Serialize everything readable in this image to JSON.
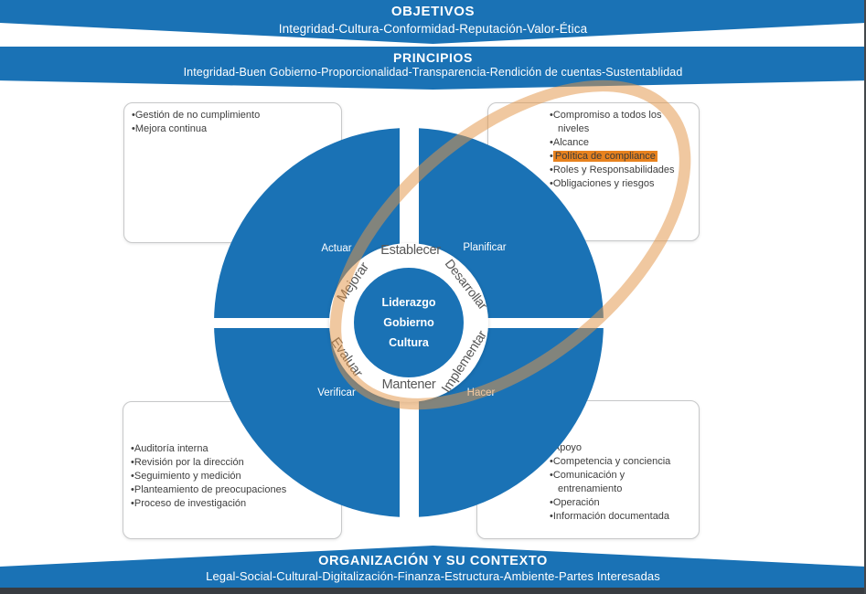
{
  "banners": {
    "objetivos": {
      "title": "OBJETIVOS",
      "subtitle": "Integridad-Cultura-Conformidad-Reputación-Valor-Ética"
    },
    "principios": {
      "title": "PRINCIPIOS",
      "subtitle": "Integridad-Buen Gobierno-Proporcionalidad-Transparencia-Rendición de cuentas-Sustentablidad"
    },
    "contexto": {
      "title": "ORGANIZACIÓN Y SU CONTEXTO",
      "subtitle": "Legal-Social-Cultural-Digitalización-Finanza-Estructura-Ambiente-Partes Interesadas"
    }
  },
  "boxes": {
    "top_left": {
      "items": [
        "Gestión de no cumplimiento",
        "Mejora continua"
      ]
    },
    "top_right": {
      "items": [
        "Compromiso a todos los niveles",
        "Alcance",
        "Política de compliance",
        "Roles y Responsabilidades",
        "Obligaciones y riesgos"
      ],
      "highlighted_item": "Política de compliance"
    },
    "bottom_left": {
      "items": [
        "Auditoría interna",
        "Revisión por la dirección",
        "Seguimiento y medición",
        "Planteamiento de preocupaciones",
        "Proceso de investigación"
      ]
    },
    "bottom_right": {
      "items": [
        "Apoyo",
        "Competencia y conciencia",
        "Comunicación y entrenamiento",
        "Operación",
        "Información documentada"
      ]
    }
  },
  "cycle": {
    "center": [
      "Liderazgo",
      "Gobierno",
      "Cultura"
    ],
    "ring": [
      "Establecer",
      "Desarrollar",
      "Implementar",
      "Mantener",
      "Evaluar",
      "Mejorar"
    ],
    "quadrants": [
      "Actuar",
      "Planificar",
      "Hacer",
      "Verificar"
    ]
  },
  "colors": {
    "primary_blue": "#1A72B5",
    "highlight_orange": "#E8821E",
    "ellipse_orange": "rgba(227,150,72,0.52)",
    "ring_label_gray": "#575757"
  }
}
